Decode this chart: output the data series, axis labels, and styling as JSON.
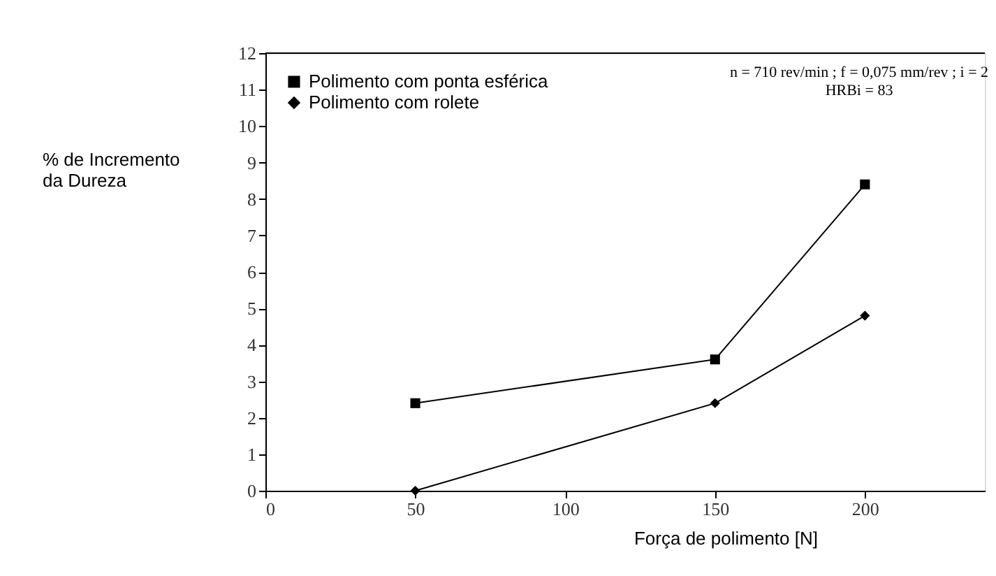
{
  "chart_data": {
    "type": "line",
    "xlabel": "Força de polimento [N]",
    "ylabel": "% de Incremento da Dureza",
    "x": [
      50,
      150,
      200
    ],
    "series": [
      {
        "name": "Polimento com ponta esférica",
        "color": "#000000",
        "marker": "square",
        "values": [
          2.4,
          3.6,
          8.4
        ]
      },
      {
        "name": "Polimento com rolete",
        "color": "#000000",
        "marker": "diamond",
        "values": [
          0,
          2.4,
          4.8
        ]
      }
    ],
    "xlim": [
      0,
      240
    ],
    "xticks": [
      0,
      50,
      100,
      150,
      200
    ],
    "ylim": [
      0,
      12
    ],
    "yticks": [
      0,
      1,
      2,
      3,
      4,
      5,
      6,
      7,
      8,
      9,
      10,
      11,
      12
    ],
    "grid": false,
    "legend": "top left",
    "line_style": "solid",
    "annotations": [
      "n = 710 rev/min ; f = 0,075 mm/rev ; i = 2",
      "HRBi = 83"
    ]
  }
}
